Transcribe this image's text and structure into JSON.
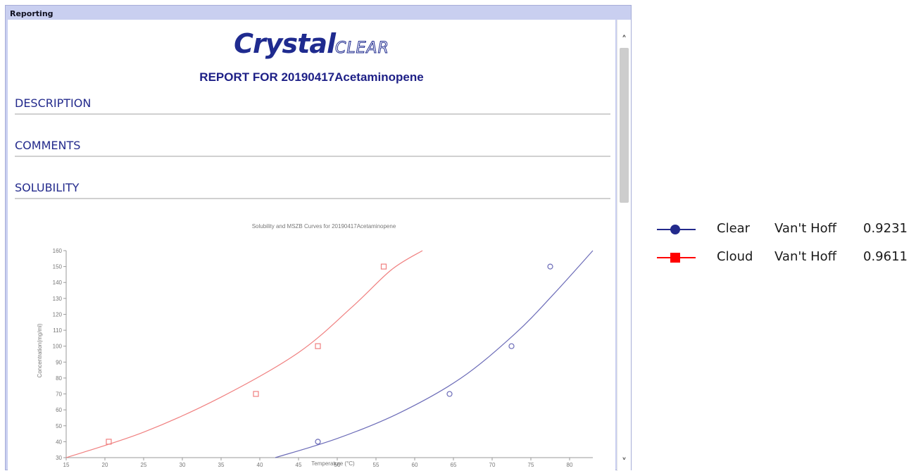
{
  "window": {
    "title": "Reporting"
  },
  "report": {
    "logo_main": "Crystal",
    "logo_sub": "CLEAR",
    "title": "REPORT FOR 20190417Acetaminopene",
    "sections": [
      "DESCRIPTION",
      "COMMENTS",
      "SOLUBILITY"
    ]
  },
  "scrollbar": {
    "up_glyph": "˄",
    "down_glyph": "˅"
  },
  "colors": {
    "clear": "#232a8c",
    "cloud": "#ff0000",
    "clear_curve": "#6c6cb8",
    "cloud_curve": "#f08080"
  },
  "legend": [
    {
      "name": "Clear",
      "method": "Van't Hoff",
      "value": "0.9231",
      "marker": "circle"
    },
    {
      "name": "Cloud",
      "method": "Van't Hoff",
      "value": "0.9611",
      "marker": "square"
    }
  ],
  "chart_data": {
    "type": "scatter",
    "title": "Solubility and MSZB Curves for 20190417Acetaminopene",
    "xlabel": "Temperature (°C)",
    "ylabel": "Concentration(mg/ml)",
    "xlim": [
      15,
      83
    ],
    "ylim": [
      30,
      160
    ],
    "xticks": [
      15,
      20,
      25,
      30,
      35,
      40,
      45,
      50,
      55,
      60,
      65,
      70,
      75,
      80
    ],
    "yticks": [
      30,
      40,
      50,
      60,
      70,
      80,
      90,
      100,
      110,
      120,
      130,
      140,
      150,
      160
    ],
    "series": [
      {
        "name": "Clear",
        "marker": "circle",
        "points": [
          [
            47.5,
            40
          ],
          [
            64.5,
            70
          ],
          [
            72.5,
            100
          ],
          [
            77.5,
            150
          ]
        ],
        "curve": [
          [
            42,
            30
          ],
          [
            50,
            42
          ],
          [
            58,
            58
          ],
          [
            66,
            80
          ],
          [
            73,
            108
          ],
          [
            78,
            133
          ],
          [
            83,
            160
          ]
        ]
      },
      {
        "name": "Cloud",
        "marker": "square",
        "points": [
          [
            20.5,
            40
          ],
          [
            39.5,
            70
          ],
          [
            47.5,
            100
          ],
          [
            56,
            150
          ]
        ],
        "curve": [
          [
            15,
            30
          ],
          [
            25,
            46
          ],
          [
            35,
            68
          ],
          [
            45,
            96
          ],
          [
            52,
            125
          ],
          [
            57,
            148
          ],
          [
            61,
            160
          ]
        ]
      }
    ]
  }
}
